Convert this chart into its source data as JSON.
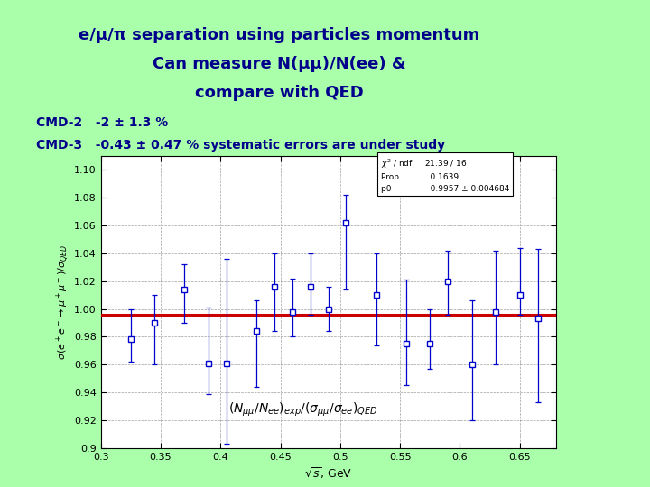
{
  "title_line1": "e/μ/π separation using particles momentum",
  "title_line2": "Can measure N(μμ)/N(ee) &",
  "title_line3": "compare with QED",
  "cmd2_text": "CMD-2   -2 ± 1.3 %",
  "cmd3_text": "CMD-3   -0.43 ± 0.47 % systematic errors are under study",
  "bg_color": "#aaffaa",
  "plot_bg_color": "#ffffff",
  "title_color": "#00008B",
  "cmd_text_color": "#00008B",
  "data_color": "#0000cc",
  "hline_color": "#cc0000",
  "hline_value": 0.9957,
  "x_data": [
    0.325,
    0.345,
    0.37,
    0.39,
    0.405,
    0.43,
    0.445,
    0.46,
    0.475,
    0.49,
    0.505,
    0.53,
    0.555,
    0.575,
    0.59,
    0.61,
    0.63,
    0.65,
    0.665
  ],
  "y_data": [
    0.978,
    0.99,
    1.014,
    0.961,
    0.961,
    0.984,
    1.016,
    0.998,
    1.016,
    1.0,
    1.062,
    1.01,
    0.975,
    0.975,
    1.02,
    0.96,
    0.998,
    1.01,
    0.993
  ],
  "y_err_lo": [
    0.016,
    0.03,
    0.024,
    0.022,
    0.058,
    0.04,
    0.032,
    0.018,
    0.02,
    0.016,
    0.048,
    0.036,
    0.03,
    0.018,
    0.024,
    0.04,
    0.038,
    0.014,
    0.06
  ],
  "y_err_hi": [
    0.022,
    0.02,
    0.018,
    0.04,
    0.075,
    0.022,
    0.024,
    0.024,
    0.024,
    0.016,
    0.02,
    0.03,
    0.046,
    0.025,
    0.022,
    0.046,
    0.044,
    0.034,
    0.05
  ],
  "xlabel": "$\\sqrt{s}$, GeV",
  "ylabel": "$\\sigma(e^+e^- \\rightarrow \\mu^+\\mu^-)/\\sigma_{QED}$",
  "xlim": [
    0.3,
    0.68
  ],
  "ylim": [
    0.9,
    1.11
  ],
  "yticks": [
    0.9,
    0.92,
    0.94,
    0.96,
    0.98,
    1.0,
    1.02,
    1.04,
    1.06,
    1.08,
    1.1
  ],
  "xticks": [
    0.3,
    0.35,
    0.4,
    0.45,
    0.5,
    0.55,
    0.6,
    0.65
  ],
  "annotation": "$(N_{\\mu\\mu}/N_{ee})_{exp}/(\\sigma_{\\mu\\mu}/\\sigma_{ee})_{QED}$"
}
